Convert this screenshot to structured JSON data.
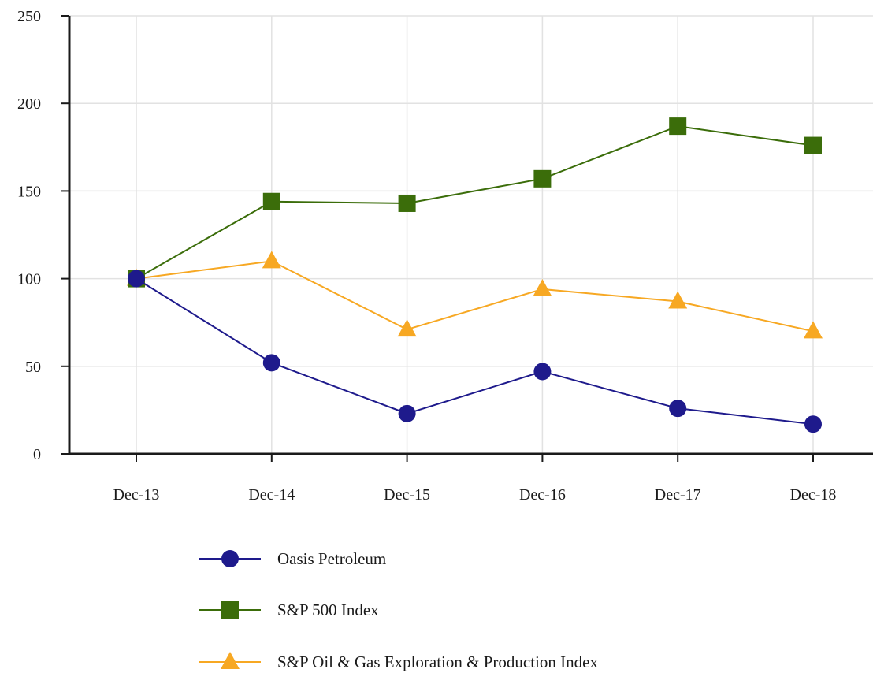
{
  "chart_data": {
    "type": "line",
    "title": "",
    "xlabel": "",
    "ylabel": "",
    "categories": [
      "Dec-13",
      "Dec-14",
      "Dec-15",
      "Dec-16",
      "Dec-17",
      "Dec-18"
    ],
    "ylim": [
      0,
      250
    ],
    "yticks": [
      0,
      50,
      100,
      150,
      200,
      250
    ],
    "grid": true,
    "legend_position": "bottom",
    "series": [
      {
        "name": "Oasis Petroleum",
        "values": [
          100,
          52,
          23,
          47,
          26,
          17
        ],
        "color": "#1e1a8c",
        "marker": "circle"
      },
      {
        "name": "S&P 500 Index",
        "values": [
          100,
          144,
          143,
          157,
          187,
          176
        ],
        "color": "#3b6d0a",
        "marker": "square"
      },
      {
        "name": "S&P Oil & Gas Exploration & Production Index",
        "values": [
          100,
          110,
          71,
          94,
          87,
          70
        ],
        "color": "#f7a823",
        "marker": "triangle"
      }
    ]
  }
}
